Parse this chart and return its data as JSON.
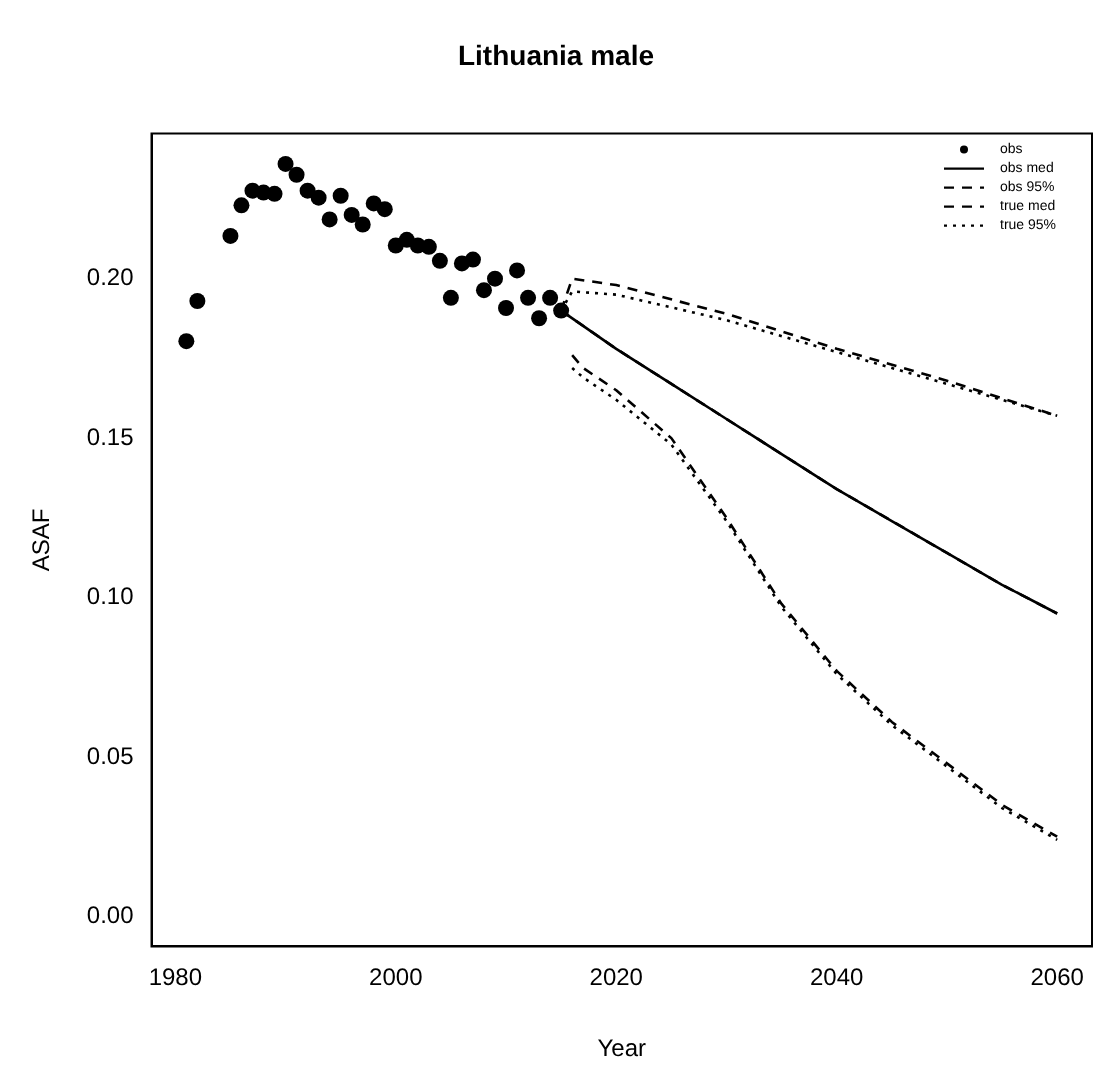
{
  "chart_data": {
    "type": "line",
    "title": "Lithuania male",
    "xlabel": "Year",
    "ylabel": "ASAF",
    "xlim": [
      1977.84,
      2063.16
    ],
    "ylim": [
      -0.0094,
      0.2455
    ],
    "xticks": [
      1980,
      2000,
      2020,
      2040,
      2060
    ],
    "yticks": [
      {
        "value": 0,
        "label": "0.00"
      },
      0.05,
      {
        "value": 0.1,
        "label": "0.10"
      },
      0.15,
      {
        "value": 0.2,
        "label": "0.20"
      }
    ],
    "grid": false,
    "legend": "top right",
    "series": [
      {
        "name": "obs",
        "type": "scatter",
        "marker": "circle",
        "color": "#000000",
        "x": [
          1981,
          1982,
          1985,
          1986,
          1987,
          1988,
          1989,
          1990,
          1991,
          1992,
          1993,
          1994,
          1995,
          1996,
          1997,
          1998,
          1999,
          2000,
          2001,
          2002,
          2003,
          2004,
          2005,
          2006,
          2007,
          2008,
          2009,
          2010,
          2011,
          2012,
          2013,
          2014,
          2015
        ],
        "values": [
          0.1804,
          0.193,
          0.2134,
          0.223,
          0.2276,
          0.227,
          0.2266,
          0.236,
          0.2326,
          0.2276,
          0.2254,
          0.2186,
          0.226,
          0.22,
          0.217,
          0.2236,
          0.2218,
          0.2104,
          0.2122,
          0.2104,
          0.21,
          0.2056,
          0.194,
          0.2048,
          0.206,
          0.1964,
          0.2,
          0.1908,
          0.2026,
          0.194,
          0.1876,
          0.194,
          0.19
        ]
      },
      {
        "name": "obs med",
        "line_style": "solid",
        "color": "#000000",
        "x": [
          2015,
          2020,
          2025,
          2030,
          2035,
          2040,
          2045,
          2050,
          2055,
          2060
        ],
        "values": [
          0.19,
          0.178,
          0.167,
          0.156,
          0.145,
          0.134,
          0.124,
          0.114,
          0.104,
          0.095
        ]
      },
      {
        "name": "obs 95%",
        "line_style": "dashed",
        "color": "#000000",
        "x": [
          2015,
          2016,
          2020,
          2030,
          2040,
          2050,
          2060
        ],
        "values": [
          0.19,
          0.2,
          0.198,
          0.189,
          0.178,
          0.168,
          0.157
        ]
      },
      {
        "line_style": "dashed",
        "color": "#000000",
        "x": [
          2016,
          2017,
          2020,
          2025,
          2030,
          2035,
          2040,
          2045,
          2050,
          2055,
          2060
        ],
        "values": [
          0.176,
          0.172,
          0.165,
          0.15,
          0.125,
          0.098,
          0.077,
          0.061,
          0.048,
          0.035,
          0.025
        ]
      },
      {
        "name": "true med",
        "line_style": "dashed",
        "color": "#000000",
        "x": [
          2015,
          2020,
          2025,
          2030,
          2035,
          2040,
          2045,
          2050,
          2055,
          2060
        ],
        "values": [
          0.19,
          0.178,
          0.167,
          0.156,
          0.145,
          0.134,
          0.124,
          0.114,
          0.104,
          0.095
        ]
      },
      {
        "name": "true 95%",
        "line_style": "dotted",
        "color": "#000000",
        "x": [
          2015,
          2016,
          2020,
          2030,
          2040,
          2050,
          2060
        ],
        "values": [
          0.19,
          0.196,
          0.195,
          0.187,
          0.177,
          0.167,
          0.157
        ]
      },
      {
        "line_style": "dotted",
        "color": "#000000",
        "x": [
          2016,
          2017,
          2020,
          2025,
          2030,
          2035,
          2040,
          2045,
          2050,
          2055,
          2060
        ],
        "values": [
          0.172,
          0.169,
          0.162,
          0.148,
          0.124,
          0.097,
          0.076,
          0.06,
          0.047,
          0.034,
          0.024
        ]
      }
    ]
  }
}
